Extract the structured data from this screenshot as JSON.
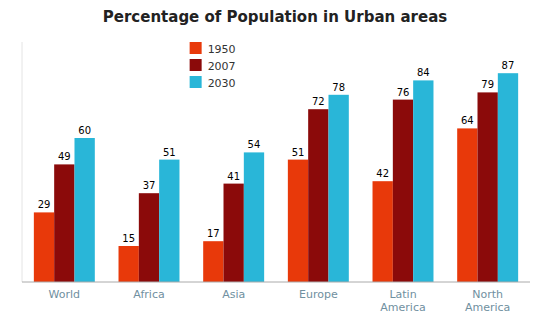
{
  "chart_data": {
    "type": "bar",
    "title": "Percentage of Population in Urban areas",
    "categories": [
      "World",
      "Africa",
      "Asia",
      "Europe",
      "Latin\nAmerica",
      "North\nAmerica"
    ],
    "series": [
      {
        "name": "1950",
        "color": "#e8390a",
        "values": [
          29,
          15,
          17,
          51,
          42,
          64
        ]
      },
      {
        "name": "2007",
        "color": "#8b0a0a",
        "values": [
          49,
          37,
          41,
          72,
          76,
          79
        ]
      },
      {
        "name": "2030",
        "color": "#29b6d8",
        "values": [
          60,
          51,
          54,
          78,
          84,
          87
        ]
      }
    ],
    "ylim": [
      0,
      100
    ],
    "data_labels": true,
    "tick_labels": "x",
    "legend": "top",
    "grid": false
  }
}
